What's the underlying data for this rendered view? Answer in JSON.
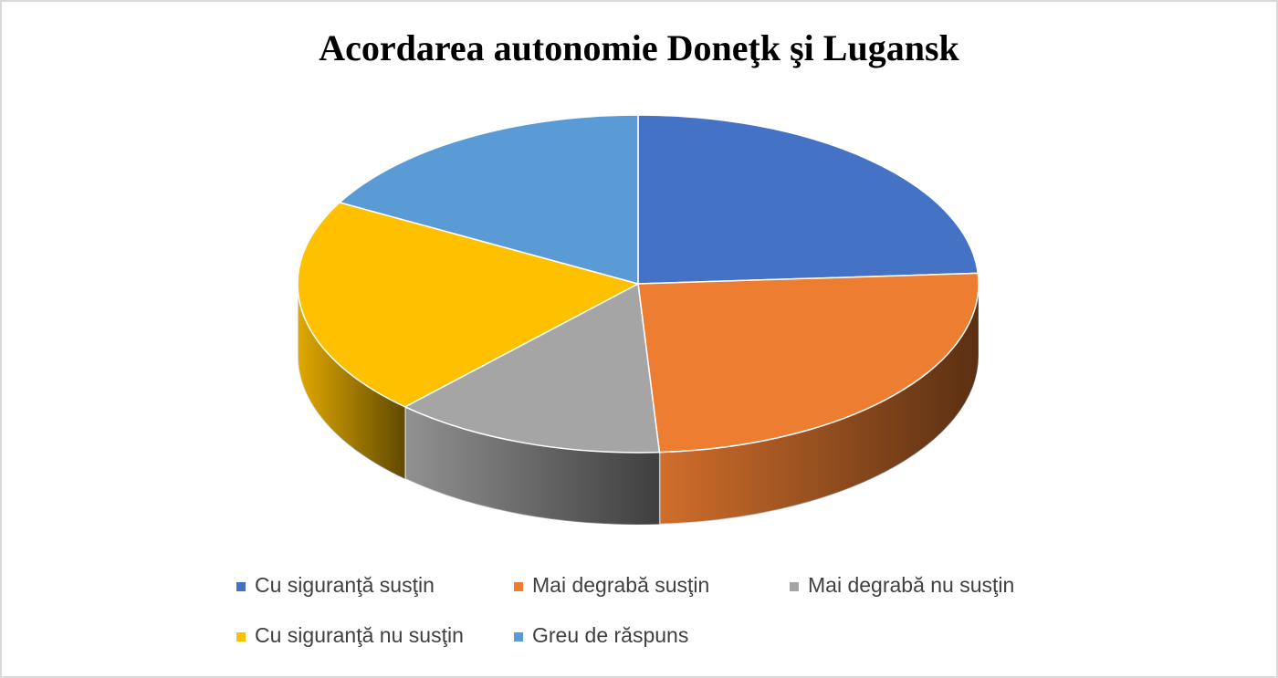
{
  "chart_data": {
    "type": "pie",
    "title": "Acordarea  autonomie Doneţk şi Lugansk",
    "categories": [
      "Cu siguranţă susţin",
      "Mai degrabă susţin",
      "Mai degrabă nu susţin",
      "Cu siguranţă nu susţin",
      "Greu de răspuns"
    ],
    "values": [
      24,
      25,
      13,
      21,
      17
    ],
    "colors": [
      "#4472c4",
      "#ed7d31",
      "#a5a5a5",
      "#ffc000",
      "#5b9bd5"
    ],
    "legend": "bottom"
  }
}
